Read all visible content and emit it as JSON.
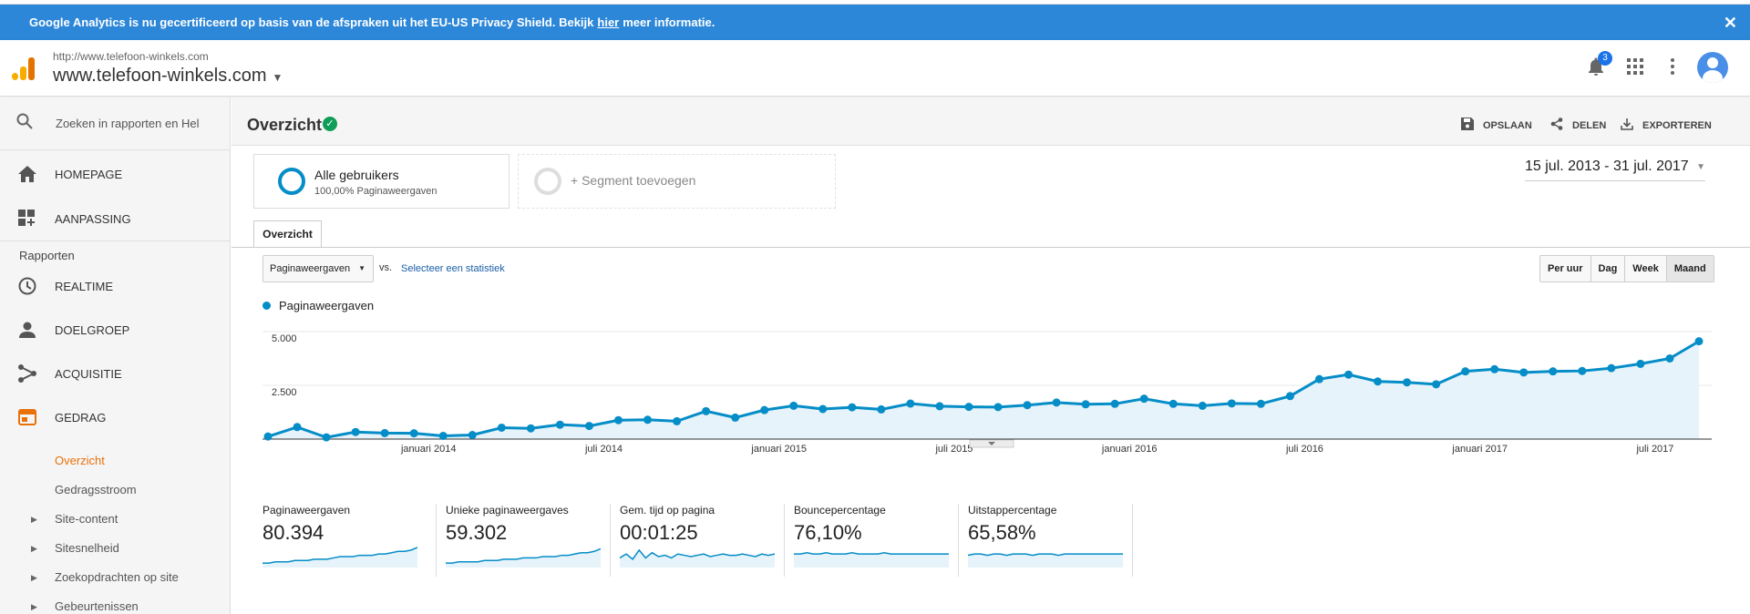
{
  "banner": {
    "text_before": "Google Analytics is nu gecertificeerd op basis van de afspraken uit het EU-US Privacy Shield. Bekijk",
    "link": "hier",
    "text_after": "meer informatie.",
    "close": "✕"
  },
  "header": {
    "property_url": "http://www.telefoon-winkels.com",
    "property_name": "www.telefoon-winkels.com",
    "notification_count": "3"
  },
  "sidebar": {
    "search_placeholder": "Zoeken in rapporten en Hel",
    "items": [
      {
        "label": "HOMEPAGE",
        "icon": "home-icon"
      },
      {
        "label": "AANPASSING",
        "icon": "dashboard-plus-icon"
      }
    ],
    "reports_label": "Rapporten",
    "reports": [
      {
        "label": "REALTIME",
        "icon": "clock-icon"
      },
      {
        "label": "DOELGROEP",
        "icon": "person-icon"
      },
      {
        "label": "ACQUISITIE",
        "icon": "acquisition-icon"
      },
      {
        "label": "GEDRAG",
        "icon": "behavior-icon"
      }
    ],
    "sub_items": [
      {
        "label": "Overzicht",
        "active": true
      },
      {
        "label": "Gedragsstroom"
      },
      {
        "label": "Site-content",
        "expandable": true
      },
      {
        "label": "Sitesnelheid",
        "expandable": true
      },
      {
        "label": "Zoekopdrachten op site",
        "expandable": true
      },
      {
        "label": "Gebeurtenissen",
        "expandable": true
      }
    ]
  },
  "main": {
    "title": "Overzicht",
    "actions": {
      "save": "OPSLAAN",
      "share": "DELEN",
      "export": "EXPORTEREN"
    },
    "segment": {
      "name": "Alle gebruikers",
      "sub": "100,00% Paginaweergaven",
      "add": "+ Segment toevoegen"
    },
    "date_range": "15 jul. 2013 - 31 jul. 2017",
    "tab": "Overzicht",
    "metric_select": "Paginaweergaven",
    "vs": "vs.",
    "select_stat": "Selecteer een statistiek",
    "granularity": [
      "Per uur",
      "Dag",
      "Week",
      "Maand"
    ],
    "legend": "Paginaweergaven",
    "accent_color": "#058dc7",
    "banner_color": "#2d87d8"
  },
  "chart_data": {
    "type": "area",
    "series": [
      {
        "name": "Paginaweergaven",
        "values": [
          120,
          560,
          80,
          330,
          280,
          270,
          150,
          190,
          530,
          500,
          670,
          610,
          880,
          900,
          830,
          1300,
          1000,
          1350,
          1550,
          1400,
          1480,
          1380,
          1650,
          1530,
          1500,
          1490,
          1580,
          1700,
          1620,
          1640,
          1880,
          1640,
          1550,
          1660,
          1640,
          2000,
          2790,
          3000,
          2680,
          2640,
          2550,
          3150,
          3250,
          3100,
          3150,
          3170,
          3300,
          3500,
          3750,
          4550
        ]
      }
    ],
    "ylim": [
      0,
      5000
    ],
    "yticks": [
      "5.000",
      "2.500"
    ],
    "ytick_values": [
      5000,
      2500
    ],
    "xtick_labels": [
      "januari 2014",
      "juli 2014",
      "januari 2015",
      "juli 2015",
      "januari 2016",
      "juli 2016",
      "januari 2017",
      "juli 2017"
    ],
    "xtick_index": [
      5.5,
      11.5,
      17.5,
      23.5,
      29.5,
      35.5,
      41.5,
      47.5
    ],
    "grid": true
  },
  "sparklines": [
    {
      "label": "Paginaweergaven",
      "value": "80.394",
      "trend": [
        2,
        2,
        3,
        3,
        3,
        4,
        4,
        4,
        5,
        5,
        5,
        6,
        7,
        7,
        7,
        8,
        8,
        8,
        9,
        9,
        10,
        11,
        11,
        12,
        14
      ]
    },
    {
      "label": "Unieke paginaweergaves",
      "value": "59.302",
      "trend": [
        2,
        2,
        3,
        3,
        3,
        3,
        4,
        4,
        4,
        5,
        5,
        5,
        6,
        6,
        6,
        7,
        7,
        7,
        8,
        8,
        9,
        10,
        10,
        11,
        13
      ]
    },
    {
      "label": "Gem. tijd op pagina",
      "value": "00:01:25",
      "trend": [
        6,
        9,
        5,
        12,
        6,
        10,
        7,
        8,
        6,
        9,
        8,
        7,
        8,
        9,
        7,
        8,
        9,
        8,
        8,
        9,
        8,
        7,
        9,
        8,
        9
      ]
    },
    {
      "label": "Bouncepercentage",
      "value": "76,10%",
      "trend": [
        9,
        9,
        10,
        9,
        9,
        10,
        9,
        9,
        9,
        10,
        9,
        9,
        9,
        9,
        10,
        9,
        9,
        9,
        9,
        9,
        9,
        9,
        9,
        9,
        9
      ]
    },
    {
      "label": "Uitstappercentage",
      "value": "65,58%",
      "trend": [
        8,
        9,
        9,
        8,
        9,
        9,
        8,
        9,
        9,
        9,
        8,
        9,
        9,
        9,
        8,
        9,
        9,
        9,
        9,
        9,
        9,
        9,
        9,
        9,
        9
      ]
    }
  ]
}
